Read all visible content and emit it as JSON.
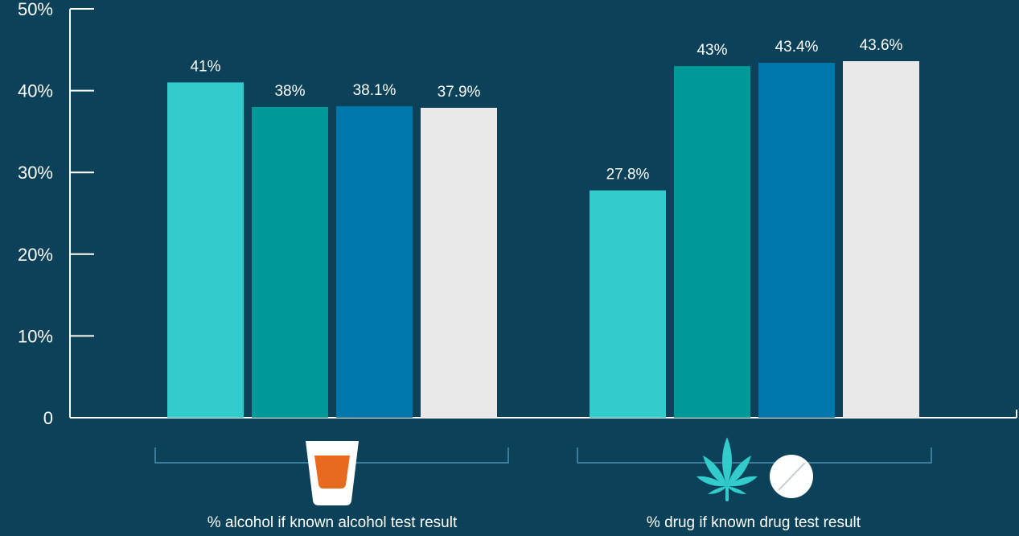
{
  "chart_data": {
    "type": "bar",
    "categories": [
      "% alcohol if known alcohol test result",
      "% drug if known drug test result"
    ],
    "series": [
      {
        "values": [
          41,
          27.8
        ],
        "labels": [
          "41%",
          "27.8%"
        ]
      },
      {
        "values": [
          38,
          43
        ],
        "labels": [
          "38%",
          "43%"
        ]
      },
      {
        "values": [
          38.1,
          43.4
        ],
        "labels": [
          "38.1%",
          "43.4%"
        ]
      },
      {
        "values": [
          37.9,
          43.6
        ],
        "labels": [
          "37.9%",
          "43.6%"
        ]
      }
    ],
    "yticks": [
      {
        "value": 0,
        "label": "0"
      },
      {
        "value": 10,
        "label": "10%"
      },
      {
        "value": 20,
        "label": "20%"
      },
      {
        "value": 30,
        "label": "30%"
      },
      {
        "value": 40,
        "label": "40%"
      },
      {
        "value": 50,
        "label": "50%"
      }
    ],
    "ylim": [
      0,
      50
    ],
    "grid": false,
    "legend": "none",
    "colors": [
      "#33cccc",
      "#009999",
      "#0077aa",
      "#e9e9e9"
    ],
    "axis_color": "#ffffff",
    "background": "#0b4159",
    "group_icons": [
      [
        "shot-glass-icon"
      ],
      [
        "cannabis-leaf-icon",
        "pill-icon"
      ]
    ]
  }
}
